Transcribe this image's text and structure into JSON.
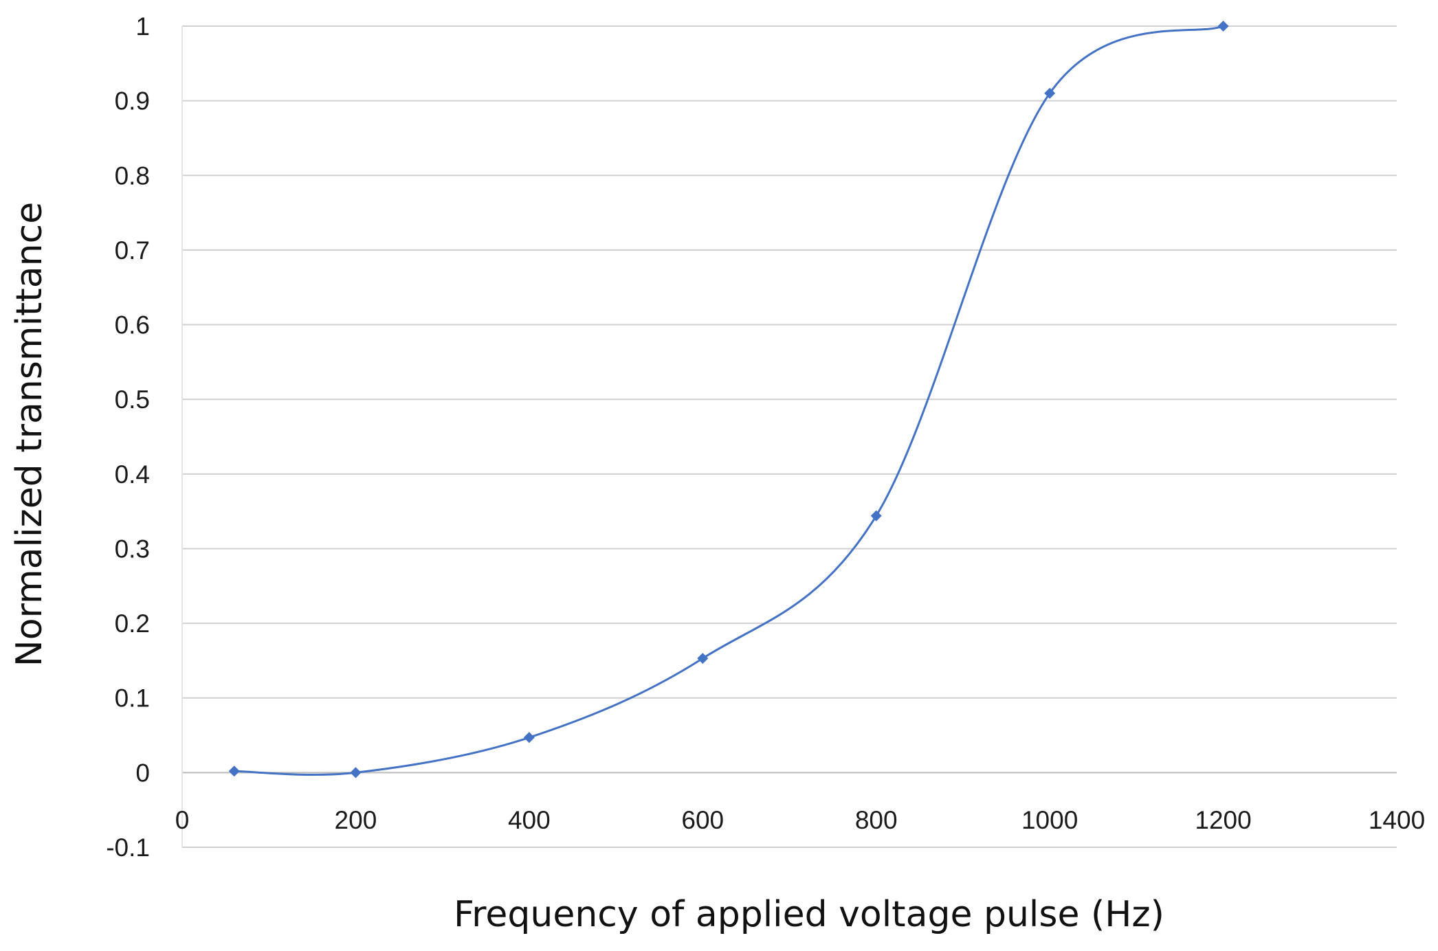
{
  "chart_data": {
    "type": "line",
    "title": "",
    "xlabel": "Frequency of applied voltage pulse (Hz)",
    "ylabel": "Normalized transmittance",
    "xlim": [
      0,
      1400
    ],
    "ylim": [
      -0.1,
      1
    ],
    "x_ticks": [
      "0",
      "200",
      "400",
      "600",
      "800",
      "1000",
      "1200",
      "1400"
    ],
    "y_ticks": [
      "-0.1",
      "0",
      "0.1",
      "0.2",
      "0.3",
      "0.4",
      "0.5",
      "0.6",
      "0.7",
      "0.8",
      "0.9",
      "1"
    ],
    "grid": "horizontal",
    "legend": "none",
    "series": [
      {
        "color": "#4472C4",
        "marker": "diamond",
        "smooth": true,
        "x": [
          60,
          200,
          400,
          600,
          800,
          1000,
          1200
        ],
        "y": [
          0.002,
          0.0,
          0.047,
          0.153,
          0.344,
          0.91,
          1.0
        ]
      }
    ]
  }
}
